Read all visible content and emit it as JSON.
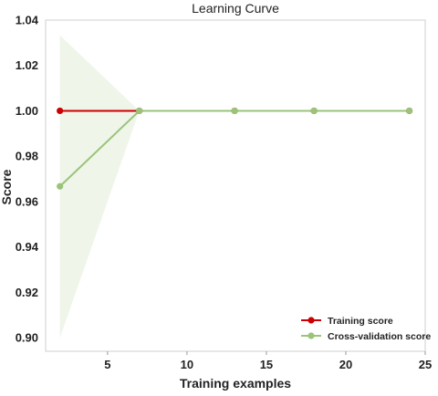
{
  "chart_data": {
    "type": "line",
    "title": "Learning Curve",
    "xlabel": "Training examples",
    "ylabel": "Score",
    "xlim": [
      1.1,
      25
    ],
    "ylim": [
      0.894,
      1.04
    ],
    "xticks": [
      5,
      10,
      15,
      20,
      25
    ],
    "yticks": [
      0.9,
      0.92,
      0.94,
      0.96,
      0.98,
      1.0,
      1.02,
      1.04
    ],
    "ytick_labels": [
      "0.90",
      "0.92",
      "0.94",
      "0.96",
      "0.98",
      "1.00",
      "1.02",
      "1.04"
    ],
    "grid": false,
    "legend_position": "bottom-right",
    "x": [
      2,
      7,
      13,
      18,
      24
    ],
    "series": [
      {
        "name": "Training score",
        "color": "#cc0000",
        "values": [
          1.0,
          1.0,
          1.0,
          1.0,
          1.0
        ],
        "band_upper": [
          1.0,
          1.0,
          1.0,
          1.0,
          1.0
        ],
        "band_lower": [
          1.0,
          1.0,
          1.0,
          1.0,
          1.0
        ]
      },
      {
        "name": "Cross-validation score",
        "color": "#99c47a",
        "values": [
          0.9667,
          1.0,
          1.0,
          1.0,
          1.0
        ],
        "band_upper": [
          1.0333,
          1.0,
          1.0,
          1.0,
          1.0
        ],
        "band_lower": [
          0.9,
          1.0,
          1.0,
          1.0,
          1.0
        ]
      }
    ]
  }
}
